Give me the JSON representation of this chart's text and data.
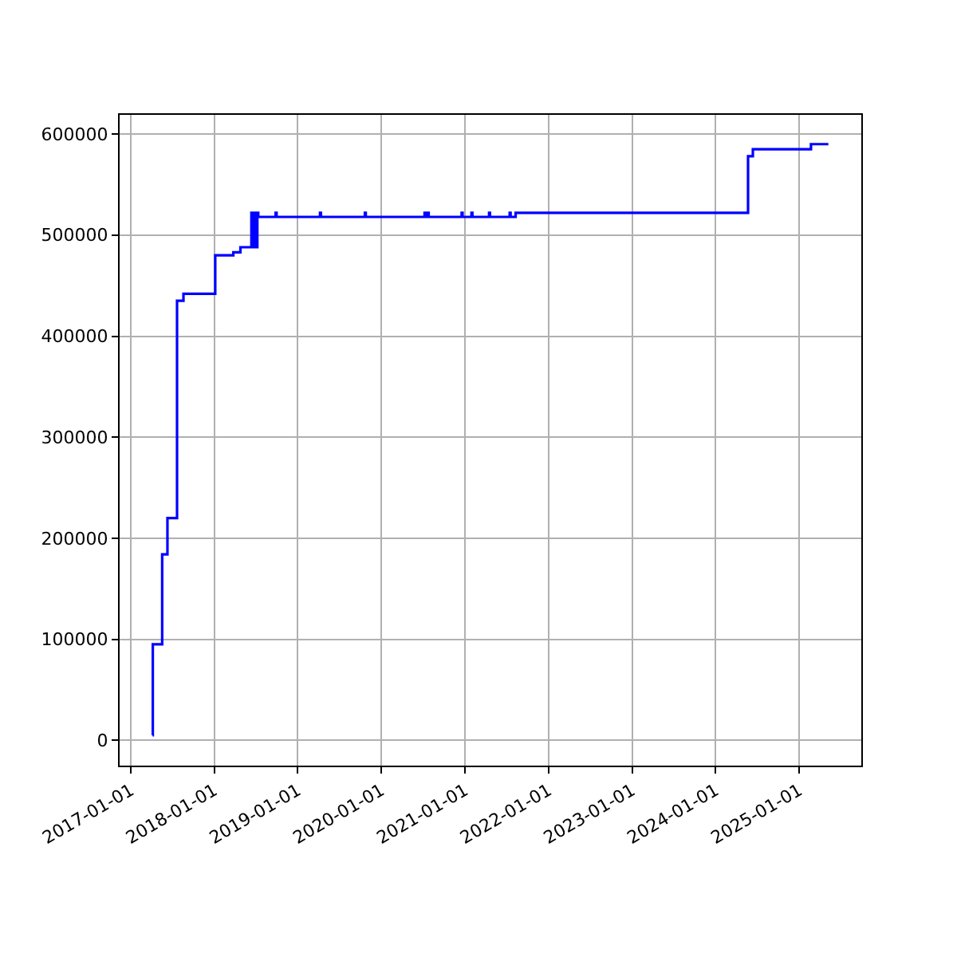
{
  "chart_data": {
    "type": "step",
    "grid": true,
    "xlim": [
      "2016-11-13",
      "2025-09-29"
    ],
    "xticks": [
      {
        "value": "2017-01-01",
        "label": "2017-01-01"
      },
      {
        "value": "2018-01-01",
        "label": "2018-01-01"
      },
      {
        "value": "2019-01-01",
        "label": "2019-01-01"
      },
      {
        "value": "2020-01-01",
        "label": "2020-01-01"
      },
      {
        "value": "2021-01-01",
        "label": "2021-01-01"
      },
      {
        "value": "2022-01-01",
        "label": "2022-01-01"
      },
      {
        "value": "2023-01-01",
        "label": "2023-01-01"
      },
      {
        "value": "2024-01-01",
        "label": "2024-01-01"
      },
      {
        "value": "2025-01-01",
        "label": "2025-01-01"
      }
    ],
    "ylim": [
      -25000,
      619000
    ],
    "yticks": [
      0,
      100000,
      200000,
      300000,
      400000,
      500000,
      600000
    ],
    "series": [
      {
        "color": "#0000ff",
        "x": [
          "2017-04-06",
          "2017-04-07",
          "2017-05-18",
          "2017-06-10",
          "2017-07-22",
          "2017-08-19",
          "2018-01-05",
          "2018-03-25",
          "2018-04-25",
          "2018-06-10",
          "2018-06-12",
          "2018-06-14",
          "2018-06-16",
          "2018-06-18",
          "2018-06-20",
          "2018-06-23",
          "2018-06-26",
          "2018-06-29",
          "2018-07-02",
          "2018-07-05",
          "2018-07-08",
          "2018-07-12",
          "2018-09-26",
          "2018-09-30",
          "2019-04-08",
          "2019-04-12",
          "2019-10-21",
          "2019-10-25",
          "2020-07-08",
          "2020-07-12",
          "2020-07-22",
          "2020-07-26",
          "2020-12-17",
          "2020-12-21",
          "2021-01-29",
          "2021-02-02",
          "2021-04-16",
          "2021-04-20",
          "2021-07-15",
          "2021-07-19",
          "2021-08-10",
          "2024-05-22",
          "2024-06-12",
          "2025-02-21",
          "2025-05-08"
        ],
        "values": [
          5000,
          95000,
          184000,
          220000,
          435000,
          442000,
          480000,
          483000,
          488000,
          488000,
          522000,
          488000,
          522000,
          488000,
          522000,
          488000,
          522000,
          488000,
          522000,
          488000,
          522000,
          518000,
          522000,
          518000,
          522000,
          518000,
          522000,
          518000,
          522000,
          518000,
          522000,
          518000,
          522000,
          518000,
          522000,
          518000,
          522000,
          518000,
          522000,
          518000,
          522000,
          578000,
          585000,
          590000,
          590000
        ]
      }
    ]
  }
}
